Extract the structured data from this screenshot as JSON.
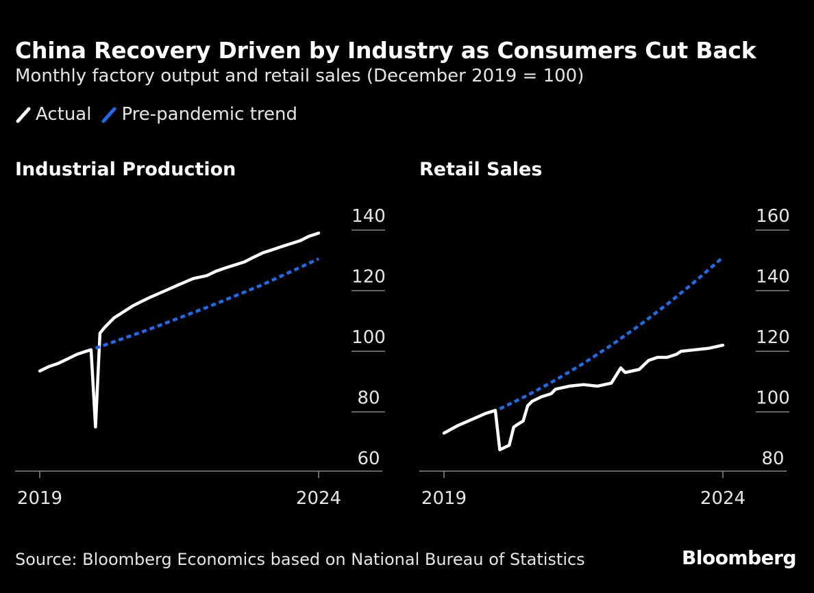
{
  "header": {
    "title": "China Recovery Driven by Industry as Consumers Cut Back",
    "subtitle": "Monthly factory output and retail sales (December 2019 = 100)"
  },
  "legend": {
    "actual_label": "Actual",
    "trend_label": "Pre-pandemic trend",
    "actual_color": "#ffffff",
    "trend_color": "#1a6cf0"
  },
  "footer": {
    "source": "Source: Bloomberg Economics based on National Bureau of Statistics",
    "brand": "Bloomberg"
  },
  "chart_data": [
    {
      "type": "line",
      "title": "Industrial Production",
      "x_ticks": [
        "2019",
        "2024"
      ],
      "x_range": [
        2019.0,
        2024.0
      ],
      "y_ticks": [
        60,
        80,
        100,
        120,
        140
      ],
      "ylim": [
        59,
        141
      ],
      "y_axis_side": "right",
      "series": [
        {
          "name": "Actual",
          "style": "solid",
          "x": [
            2019.0,
            2019.17,
            2019.33,
            2019.5,
            2019.67,
            2019.83,
            2019.92,
            2020.0,
            2020.08,
            2020.17,
            2020.25,
            2020.33,
            2020.5,
            2020.67,
            2020.83,
            2021.0,
            2021.25,
            2021.5,
            2021.75,
            2022.0,
            2022.17,
            2022.33,
            2022.5,
            2022.67,
            2022.83,
            2023.0,
            2023.17,
            2023.33,
            2023.5,
            2023.67,
            2023.83,
            2023.92,
            2024.0
          ],
          "values": [
            93.5,
            95,
            96,
            97.5,
            99,
            100,
            100.5,
            75,
            106,
            108,
            109.5,
            111,
            113,
            115,
            116.5,
            118,
            120,
            122,
            124,
            125,
            126.5,
            127.5,
            128.5,
            129.5,
            131,
            132.5,
            133.5,
            134.5,
            135.5,
            136.5,
            138,
            138.5,
            139
          ]
        },
        {
          "name": "Pre-pandemic trend",
          "style": "dashed",
          "x": [
            2020.0,
            2021.0,
            2022.0,
            2023.0,
            2024.0
          ],
          "values": [
            101,
            107.5,
            114.5,
            122,
            130.5
          ]
        }
      ]
    },
    {
      "type": "line",
      "title": "Retail Sales",
      "x_ticks": [
        "2019",
        "2024"
      ],
      "x_range": [
        2019.0,
        2024.0
      ],
      "y_ticks": [
        80,
        100,
        120,
        140,
        160
      ],
      "ylim": [
        79,
        161
      ],
      "y_axis_side": "right",
      "series": [
        {
          "name": "Actual",
          "style": "solid",
          "x": [
            2019.0,
            2019.25,
            2019.5,
            2019.75,
            2019.92,
            2020.0,
            2020.17,
            2020.25,
            2020.33,
            2020.42,
            2020.5,
            2020.58,
            2020.75,
            2020.92,
            2021.0,
            2021.25,
            2021.5,
            2021.75,
            2022.0,
            2022.17,
            2022.25,
            2022.5,
            2022.67,
            2022.83,
            2023.0,
            2023.17,
            2023.25,
            2023.5,
            2023.75,
            2024.0
          ],
          "values": [
            93,
            95.5,
            97.5,
            99.5,
            100.5,
            87.5,
            89,
            95,
            96,
            97,
            102,
            103.5,
            105,
            106,
            107.5,
            108.5,
            109,
            108.5,
            109.5,
            114.5,
            113,
            114,
            117,
            118,
            118,
            119,
            120,
            120.5,
            121,
            122
          ]
        },
        {
          "name": "Pre-pandemic trend",
          "style": "dashed",
          "x": [
            2020.0,
            2020.5,
            2021.0,
            2021.5,
            2022.0,
            2022.5,
            2023.0,
            2023.5,
            2024.0
          ],
          "values": [
            101,
            105.5,
            110.5,
            116,
            122,
            128.5,
            135.5,
            143,
            151
          ]
        }
      ]
    }
  ]
}
